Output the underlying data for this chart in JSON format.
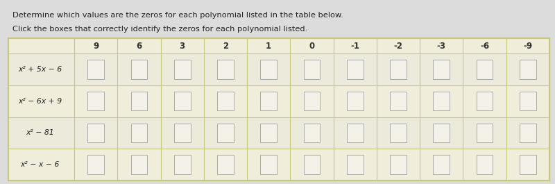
{
  "title_line1": "Determine which values are the zeros for each polynomial listed in the table below.",
  "title_line2": "Click the boxes that correctly identify the zeros for each polynomial listed.",
  "col_headers": [
    "9",
    "6",
    "3",
    "2",
    "1",
    "0",
    "-1",
    "-2",
    "-3",
    "-6",
    "-9"
  ],
  "row_labels": [
    "x² + 5x − 6",
    "x² − 6x + 9",
    "x² − 81",
    "x² − x − 6"
  ],
  "num_cols": 11,
  "num_rows": 4,
  "page_bg": "#dcdcdc",
  "table_outer_bg": "#f0eedb",
  "table_inner_bg": "#eceadb",
  "cell_bg": "#f4f2e8",
  "table_border_color": "#c8c87a",
  "cell_border_color": "#aaaaaa",
  "text_color": "#222222",
  "header_text_color": "#333333"
}
